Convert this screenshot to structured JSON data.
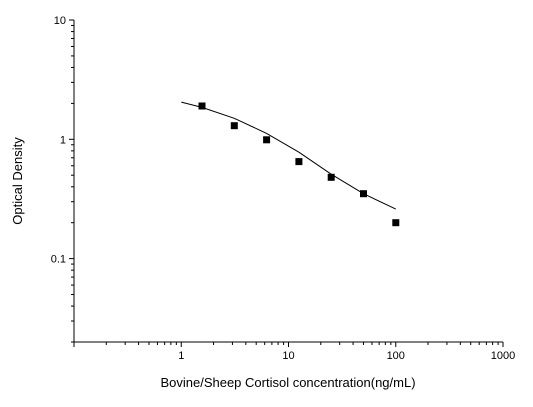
{
  "chart_data": {
    "type": "scatter",
    "xlabel": "Bovine/Sheep Cortisol concentration(ng/mL)",
    "ylabel": "Optical Density",
    "x_scale": "log",
    "y_scale": "log",
    "xlim": [
      0.1,
      1000
    ],
    "ylim": [
      0.02,
      10
    ],
    "x_ticks": [
      "1",
      "10",
      "100",
      "1000"
    ],
    "y_ticks": [
      "0.1",
      "1",
      "10"
    ],
    "grid": false,
    "legend": "none",
    "series": [
      {
        "type": "scatter",
        "x": [
          1.5625,
          3.125,
          6.25,
          12.5,
          25,
          50,
          100
        ],
        "y": [
          1.9,
          1.3,
          0.99,
          0.65,
          0.48,
          0.35,
          0.2
        ]
      },
      {
        "type": "line",
        "x": [
          1,
          1.5625,
          3.125,
          6.25,
          12.5,
          25,
          50,
          100
        ],
        "y": [
          2.05,
          1.85,
          1.5,
          1.12,
          0.78,
          0.51,
          0.35,
          0.26
        ]
      }
    ]
  }
}
